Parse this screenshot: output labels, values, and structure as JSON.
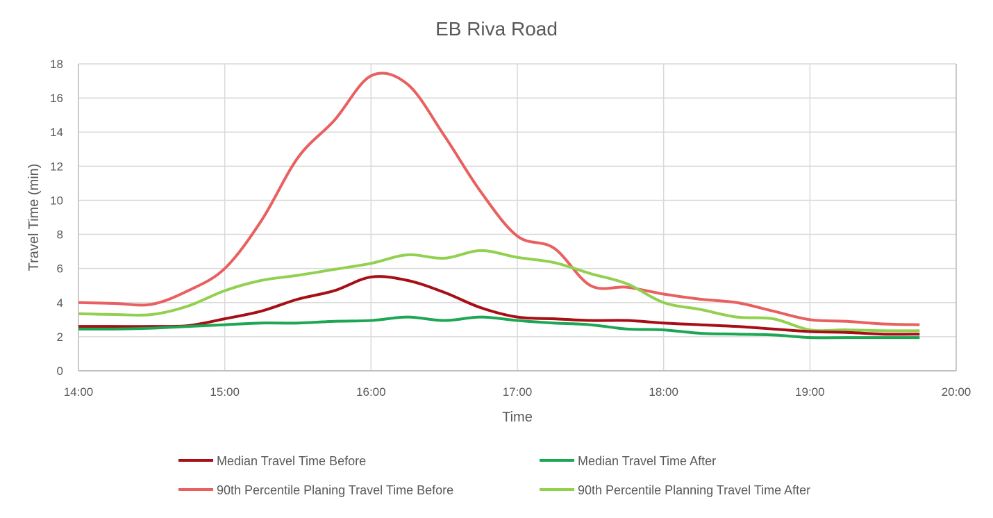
{
  "chart_data": {
    "type": "line",
    "title": "EB Riva Road",
    "xlabel": "Time",
    "ylabel": "Travel Time (min)",
    "ylim": [
      0,
      18
    ],
    "yticks": [
      "0",
      "2",
      "4",
      "6",
      "8",
      "10",
      "12",
      "14",
      "16",
      "18"
    ],
    "xlim_hours": [
      14,
      20
    ],
    "xticks": [
      "14:00",
      "15:00",
      "16:00",
      "17:00",
      "18:00",
      "19:00",
      "20:00"
    ],
    "grid": true,
    "legend_position": "bottom",
    "x": [
      "14:00",
      "14:15",
      "14:30",
      "14:45",
      "15:00",
      "15:15",
      "15:30",
      "15:45",
      "16:00",
      "16:15",
      "16:30",
      "16:45",
      "17:00",
      "17:15",
      "17:30",
      "17:45",
      "18:00",
      "18:15",
      "18:30",
      "18:45",
      "19:00",
      "19:15",
      "19:30",
      "19:45"
    ],
    "series": [
      {
        "name": "Median Travel Time Before",
        "color": "#A50F15",
        "values": [
          2.6,
          2.6,
          2.6,
          2.65,
          3.05,
          3.5,
          4.2,
          4.7,
          5.5,
          5.3,
          4.6,
          3.7,
          3.15,
          3.05,
          2.95,
          2.95,
          2.8,
          2.7,
          2.6,
          2.45,
          2.3,
          2.25,
          2.15,
          2.15
        ]
      },
      {
        "name": "Median Travel Time After",
        "color": "#1DA653",
        "values": [
          2.45,
          2.45,
          2.5,
          2.6,
          2.7,
          2.8,
          2.8,
          2.9,
          2.95,
          3.15,
          2.95,
          3.15,
          2.95,
          2.8,
          2.7,
          2.45,
          2.4,
          2.2,
          2.15,
          2.1,
          1.95,
          1.95,
          1.95,
          1.95
        ]
      },
      {
        "name": "90th Percentile Planing Travel Time Before",
        "color": "#E8605F",
        "values": [
          4.0,
          3.95,
          3.9,
          4.7,
          6.0,
          8.8,
          12.5,
          14.7,
          17.3,
          16.8,
          13.8,
          10.5,
          7.9,
          7.2,
          5.0,
          4.9,
          4.5,
          4.2,
          4.0,
          3.5,
          3.0,
          2.9,
          2.75,
          2.7
        ]
      },
      {
        "name": "90th Percentile Planning Travel Time After",
        "color": "#92D050",
        "values": [
          3.35,
          3.3,
          3.3,
          3.8,
          4.7,
          5.3,
          5.6,
          5.95,
          6.3,
          6.8,
          6.6,
          7.05,
          6.65,
          6.35,
          5.7,
          5.1,
          4.0,
          3.6,
          3.15,
          3.05,
          2.4,
          2.4,
          2.35,
          2.35
        ]
      }
    ]
  }
}
